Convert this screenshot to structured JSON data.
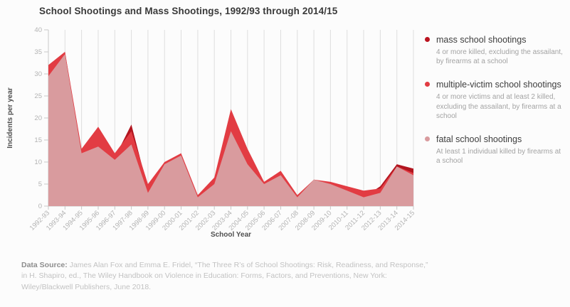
{
  "title": "School Shootings and Mass Shootings, 1992/93 through 2014/15",
  "legend": {
    "items": [
      {
        "id": "mass",
        "label": "mass school shootings",
        "desc": "4 or more killed, excluding the assailant, by firearms at a school",
        "color": "#bb1420"
      },
      {
        "id": "multiple-victim",
        "label": "multiple-victim school shootings",
        "desc": "4 or more victims and at least 2 killed, excluding the assailant, by firearms at a school",
        "color": "#e23c43"
      },
      {
        "id": "fatal",
        "label": "fatal school shootings",
        "desc": "At least 1 individual killed by firearms at a school",
        "color": "#d99b9e"
      }
    ]
  },
  "footer": {
    "label": "Data Source:",
    "text": "James Alan Fox and Emma E. Fridel, “The Three R’s of School Shootings: Risk, Readiness, and Response,” in H. Shapiro, ed., The Wiley Handbook on Violence in Education: Forms, Factors, and Preventions, New York: Wiley/Blackwell Publishers, June 2018."
  },
  "chart_data": {
    "type": "area",
    "title": "School Shootings and Mass Shootings, 1992/93 through 2014/15",
    "xlabel": "School Year",
    "ylabel": "Incidents per year",
    "ylim": [
      0,
      40
    ],
    "ytick_step": 5,
    "grid": "vertical",
    "legend_position": "right",
    "categories": [
      "1992-93",
      "1993-94",
      "1994-95",
      "1995-96",
      "1996-97",
      "1997-98",
      "1998-99",
      "1999-00",
      "2000-01",
      "2001-02",
      "2002-03",
      "2003-04",
      "2004-05",
      "2005-06",
      "2006-07",
      "2007-08",
      "2008-09",
      "2009-10",
      "2010-11",
      "2011-12",
      "2012-13",
      "2013-14",
      "2014-15"
    ],
    "series": [
      {
        "id": "mass",
        "name": "mass school shootings",
        "color": "#b2151f",
        "values": [
          32,
          35,
          12,
          17,
          11,
          18.5,
          4,
          9.5,
          11.5,
          2,
          5,
          21,
          11,
          5,
          7.5,
          2,
          6,
          5,
          3.5,
          2,
          4.5,
          9.5,
          8.5
        ]
      },
      {
        "id": "multiple-victim",
        "name": "multiple-victim school shootings",
        "color": "#e23c43",
        "values": [
          32,
          35,
          13,
          18,
          12,
          17,
          5,
          10,
          12,
          2.5,
          6.5,
          22,
          13,
          5.5,
          8,
          2.5,
          6,
          5.5,
          4.5,
          3.5,
          4,
          9,
          7.5
        ]
      },
      {
        "id": "fatal",
        "name": "fatal school shootings",
        "color": "#d99b9e",
        "values": [
          29.5,
          34.5,
          12,
          13.5,
          10.5,
          14,
          3,
          9.5,
          11.5,
          2,
          5,
          17,
          9.5,
          5,
          7,
          2,
          6,
          5,
          3.5,
          2,
          3,
          9,
          7
        ]
      }
    ]
  },
  "axis_colors": {
    "grid": "#dedede",
    "axis_line": "#c8c8c8",
    "tick_label": "#b3b3b3",
    "axis_title": "#4f4f4f"
  }
}
